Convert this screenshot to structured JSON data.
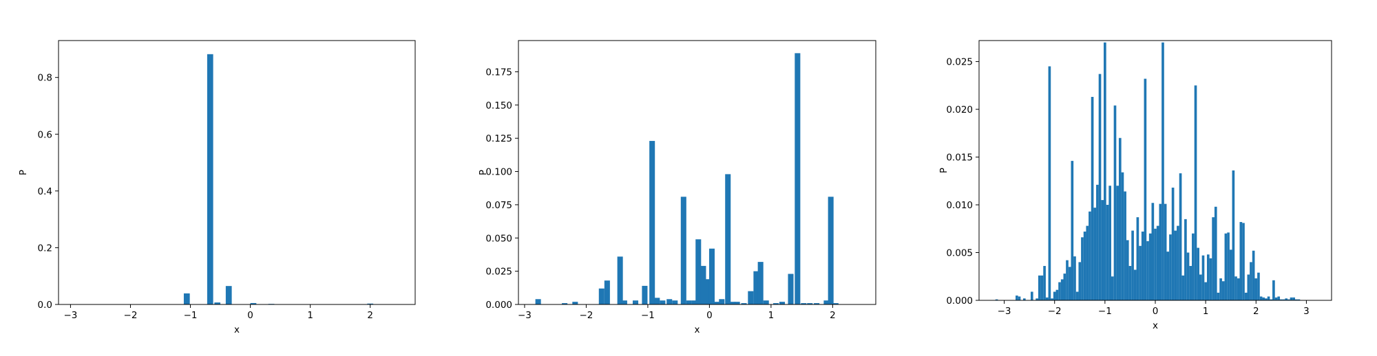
{
  "chart_data": [
    {
      "type": "bar",
      "xlabel": "x",
      "ylabel": "P",
      "xlim": [
        -3.2,
        2.75
      ],
      "ylim": [
        0,
        0.93
      ],
      "xticks": [
        -3,
        -2,
        -1,
        0,
        1,
        2
      ],
      "xtick_labels": [
        "−3",
        "−2",
        "−1",
        "0",
        "1",
        "2"
      ],
      "yticks": [
        0.0,
        0.2,
        0.4,
        0.6,
        0.8
      ],
      "ytick_labels": [
        "0.0",
        "0.2",
        "0.4",
        "0.6",
        "0.8"
      ],
      "bar_width": 0.1,
      "bar_color": "#1f77b4",
      "x": [
        -1.06,
        -0.67,
        -0.55,
        -0.36,
        0.05,
        0.35,
        2.0
      ],
      "values": [
        0.039,
        0.882,
        0.007,
        0.065,
        0.005,
        0.002,
        0.003
      ]
    },
    {
      "type": "bar",
      "xlabel": "x",
      "ylabel": "P",
      "xlim": [
        -3.1,
        2.7
      ],
      "ylim": [
        0,
        0.1985
      ],
      "xticks": [
        -3,
        -2,
        -1,
        0,
        1,
        2
      ],
      "xtick_labels": [
        "−3",
        "−2",
        "−1",
        "0",
        "1",
        "2"
      ],
      "yticks": [
        0.0,
        0.025,
        0.05,
        0.075,
        0.1,
        0.125,
        0.15,
        0.175
      ],
      "ytick_labels": [
        "0.000",
        "0.025",
        "0.050",
        "0.075",
        "0.100",
        "0.125",
        "0.150",
        "0.175"
      ],
      "bar_width": 0.09,
      "bar_color": "#1f77b4",
      "x": [
        -2.78,
        -2.35,
        -2.18,
        -1.75,
        -1.66,
        -1.45,
        -1.38,
        -1.2,
        -1.05,
        -0.93,
        -0.85,
        -0.76,
        -0.65,
        -0.56,
        -0.42,
        -0.33,
        -0.24,
        -0.18,
        -0.1,
        -0.04,
        0.04,
        0.12,
        0.2,
        0.3,
        0.38,
        0.45,
        0.56,
        0.67,
        0.76,
        0.83,
        0.92,
        1.08,
        1.18,
        1.32,
        1.43,
        1.53,
        1.63,
        1.74,
        1.9,
        1.97,
        2.05
      ],
      "values": [
        0.004,
        0.001,
        0.002,
        0.012,
        0.018,
        0.036,
        0.003,
        0.003,
        0.014,
        0.123,
        0.005,
        0.003,
        0.004,
        0.003,
        0.081,
        0.003,
        0.003,
        0.049,
        0.029,
        0.019,
        0.042,
        0.002,
        0.004,
        0.098,
        0.002,
        0.002,
        0.001,
        0.01,
        0.025,
        0.032,
        0.003,
        0.001,
        0.002,
        0.023,
        0.189,
        0.001,
        0.001,
        0.001,
        0.003,
        0.081,
        0.001
      ]
    },
    {
      "type": "bar",
      "xlabel": "x",
      "ylabel": "P",
      "xlim": [
        -3.5,
        3.5
      ],
      "ylim": [
        0,
        0.0272
      ],
      "xticks": [
        -3,
        -2,
        -1,
        0,
        1,
        2,
        3
      ],
      "xtick_labels": [
        "−3",
        "−2",
        "−1",
        "0",
        "1",
        "2",
        "3"
      ],
      "yticks": [
        0.0,
        0.005,
        0.01,
        0.015,
        0.02,
        0.025
      ],
      "ytick_labels": [
        "0.000",
        "0.005",
        "0.010",
        "0.015",
        "0.020",
        "0.025"
      ],
      "bar_width": 0.05,
      "bar_color": "#1f77b4",
      "x": [
        -3.15,
        -2.75,
        -2.7,
        -2.6,
        -2.45,
        -2.35,
        -2.3,
        -2.25,
        -2.2,
        -2.15,
        -2.1,
        -2.05,
        -2.0,
        -1.95,
        -1.9,
        -1.85,
        -1.8,
        -1.75,
        -1.7,
        -1.65,
        -1.6,
        -1.55,
        -1.5,
        -1.45,
        -1.4,
        -1.35,
        -1.3,
        -1.25,
        -1.2,
        -1.15,
        -1.1,
        -1.05,
        -1.0,
        -0.95,
        -0.9,
        -0.85,
        -0.8,
        -0.75,
        -0.7,
        -0.65,
        -0.6,
        -0.55,
        -0.5,
        -0.45,
        -0.4,
        -0.35,
        -0.3,
        -0.25,
        -0.2,
        -0.15,
        -0.1,
        -0.05,
        0.0,
        0.05,
        0.1,
        0.15,
        0.2,
        0.25,
        0.3,
        0.35,
        0.4,
        0.45,
        0.5,
        0.55,
        0.6,
        0.65,
        0.7,
        0.75,
        0.8,
        0.85,
        0.9,
        0.95,
        1.0,
        1.05,
        1.1,
        1.15,
        1.2,
        1.25,
        1.3,
        1.35,
        1.4,
        1.45,
        1.5,
        1.55,
        1.6,
        1.65,
        1.7,
        1.75,
        1.8,
        1.85,
        1.9,
        1.95,
        2.0,
        2.05,
        2.1,
        2.15,
        2.2,
        2.25,
        2.3,
        2.35,
        2.4,
        2.45,
        2.5,
        2.55,
        2.6,
        2.65,
        2.7,
        2.75,
        2.8,
        2.85
      ],
      "values": [
        0.0001,
        0.0005,
        0.0004,
        0.0002,
        0.0009,
        0.0002,
        0.0026,
        0.0026,
        0.0036,
        0.0003,
        0.0245,
        0.0002,
        0.0009,
        0.0011,
        0.0019,
        0.0022,
        0.0028,
        0.0042,
        0.0035,
        0.0146,
        0.0046,
        0.0009,
        0.004,
        0.0066,
        0.0072,
        0.0078,
        0.0093,
        0.0213,
        0.0097,
        0.0121,
        0.0237,
        0.0105,
        0.027,
        0.01,
        0.012,
        0.0025,
        0.0204,
        0.012,
        0.017,
        0.0134,
        0.0114,
        0.0063,
        0.0036,
        0.0073,
        0.0032,
        0.0087,
        0.0057,
        0.0072,
        0.0232,
        0.0062,
        0.007,
        0.0102,
        0.0075,
        0.0078,
        0.0101,
        0.027,
        0.0101,
        0.0051,
        0.0069,
        0.0118,
        0.0073,
        0.0078,
        0.0133,
        0.0026,
        0.0085,
        0.005,
        0.0036,
        0.007,
        0.0225,
        0.0055,
        0.0027,
        0.0047,
        0.0019,
        0.0048,
        0.0044,
        0.0087,
        0.0098,
        0.0008,
        0.0023,
        0.002,
        0.007,
        0.0071,
        0.0053,
        0.0136,
        0.0025,
        0.0023,
        0.0082,
        0.0081,
        0.0008,
        0.0027,
        0.004,
        0.0052,
        0.0023,
        0.0029,
        0.0004,
        0.0003,
        0.0002,
        0.0004,
        0.0001,
        0.0021,
        0.0003,
        0.0004,
        0.0001,
        0.0001,
        0.0002,
        0.0001,
        0.0003,
        0.0003,
        0.0001,
        0.0001
      ]
    }
  ]
}
